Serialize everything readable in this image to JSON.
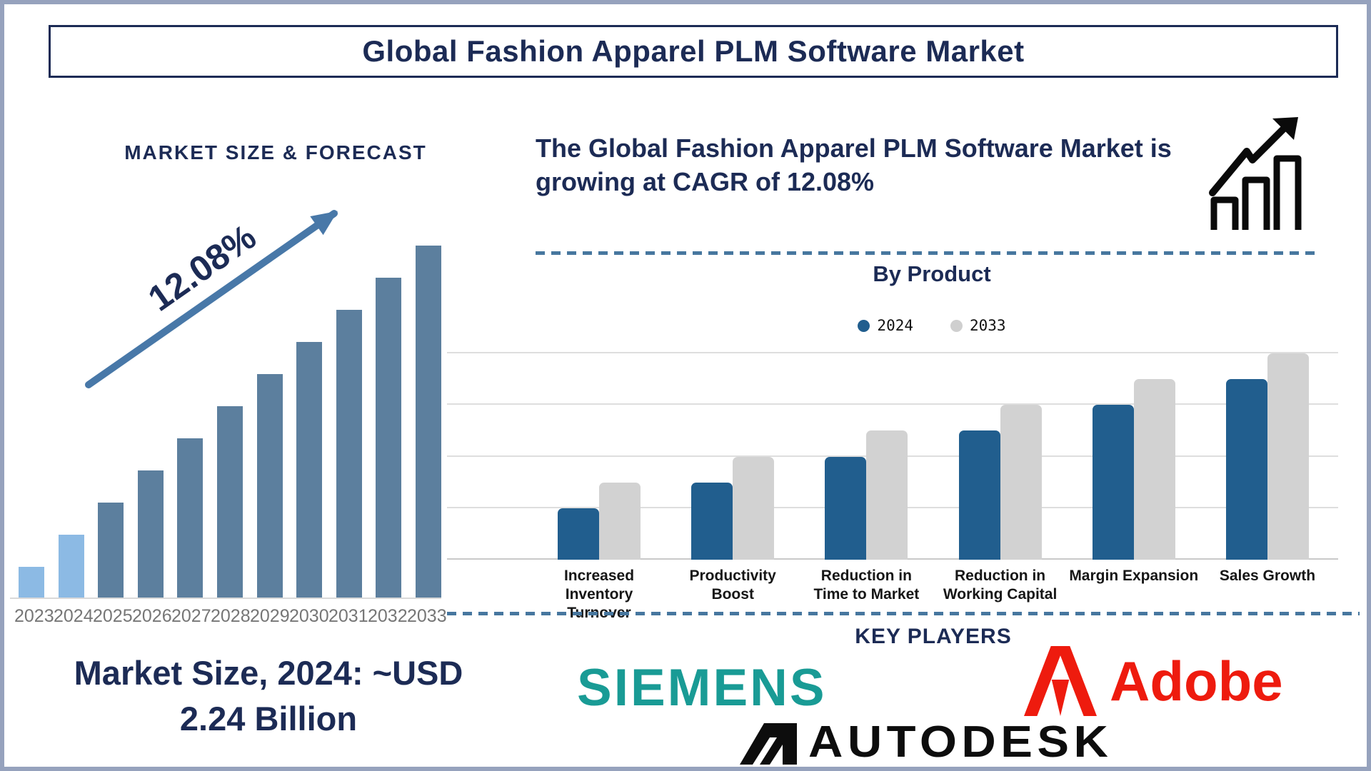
{
  "page": {
    "title": "Global Fashion Apparel PLM Software Market",
    "border_color": "#96a2bd",
    "accent_navy": "#1c2b55",
    "dashed_divider_color": "#47779f"
  },
  "left_section": {
    "heading": "MARKET SIZE & FORECAST",
    "cagr_annotation": "12.08%",
    "arrow_color": "#4878a8",
    "market_size_note_line1": "Market Size, 2024: ~USD",
    "market_size_note_line2": "2.24 Billion"
  },
  "right_section": {
    "growth_statement": "The Global Fashion Apparel PLM Software Market is growing at CAGR of 12.08%",
    "growth_icon": "bar-chart-rising-arrow-icon",
    "by_product_title": "By Product",
    "legend": [
      {
        "label": "2024",
        "color": "#215e8e"
      },
      {
        "label": "2033",
        "color": "#cfcfcf"
      }
    ],
    "key_players_title": "KEY PLAYERS",
    "key_players": [
      {
        "name": "SIEMENS",
        "color": "#199b95"
      },
      {
        "name": "Adobe",
        "color": "#ee1b0e"
      },
      {
        "name": "AUTODESK",
        "color": "#0d0d0d"
      }
    ]
  },
  "chart_data": [
    {
      "id": "market_size_forecast",
      "type": "bar",
      "title": "MARKET SIZE & FORECAST",
      "categories": [
        "2023",
        "2024",
        "2025",
        "2026",
        "2027",
        "2028",
        "2029",
        "2030",
        "2031",
        "2032",
        "2033"
      ],
      "values": [
        1,
        2,
        3,
        4,
        5,
        6,
        7,
        8,
        9,
        10,
        11
      ],
      "units": "relative bar height (no numeric axis shown)",
      "highlight_years": [
        "2023",
        "2024"
      ],
      "bar_color_highlight": "#8cbae4",
      "bar_color_default": "#5c7f9e",
      "tick_label_color": "#767676",
      "grid": false,
      "annotations": {
        "cagr": "12.08%",
        "market_size_2024": "~USD 2.24 Billion"
      }
    },
    {
      "id": "by_product",
      "type": "bar",
      "title": "By Product",
      "categories": [
        "Increased Inventory Turnover",
        "Productivity Boost",
        "Reduction in Time to Market",
        "Reduction in Working Capital",
        "Margin Expansion",
        "Sales Growth"
      ],
      "category_lines": [
        [
          "Increased",
          "Inventory Turnover"
        ],
        [
          "Productivity",
          "Boost"
        ],
        [
          "Reduction in",
          "Time to Market"
        ],
        [
          "Reduction in",
          "Working Capital"
        ],
        [
          "Margin Expansion"
        ],
        [
          "Sales Growth"
        ]
      ],
      "series": [
        {
          "name": "2024",
          "color": "#215e8e",
          "values": [
            1,
            1.5,
            2,
            2.5,
            3,
            3.5
          ]
        },
        {
          "name": "2033",
          "color": "#d2d2d2",
          "values": [
            1.5,
            2,
            2.5,
            3,
            3.5,
            4
          ]
        }
      ],
      "units": "relative bar height (no numeric axis shown)",
      "ylim": [
        0,
        4
      ],
      "grid": true,
      "legend_position": "top"
    }
  ]
}
